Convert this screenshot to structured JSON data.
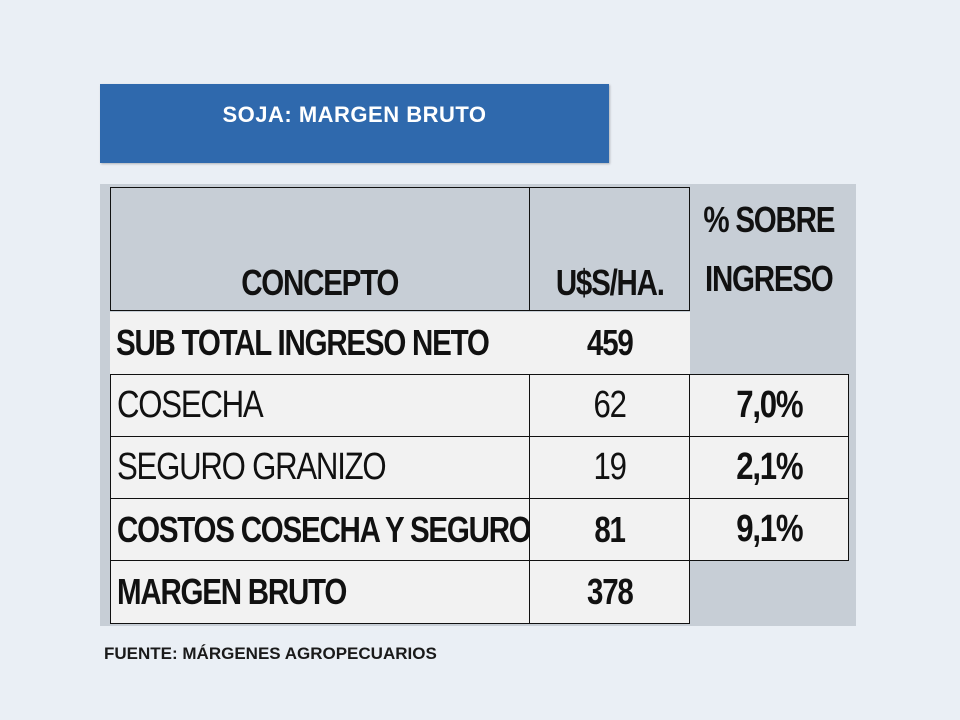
{
  "title": "SOJA: MARGEN BRUTO",
  "table": {
    "headers": {
      "concept": "CONCEPTO",
      "usd": "U$S/HA.",
      "pct_line1": "% SOBRE",
      "pct_line2": "INGRESO"
    },
    "rows": [
      {
        "concepto": "SUB TOTAL INGRESO NETO",
        "usd": "459",
        "pct": ""
      },
      {
        "concepto": "COSECHA",
        "usd": "62",
        "pct": "7,0%"
      },
      {
        "concepto": "SEGURO GRANIZO",
        "usd": "19",
        "pct": "2,1%"
      },
      {
        "concepto": "COSTOS COSECHA Y SEGURO",
        "usd": "81",
        "pct": "9,1%"
      },
      {
        "concepto": "MARGEN BRUTO",
        "usd": "378",
        "pct": ""
      }
    ]
  },
  "source": "FUENTE: MÁRGENES AGROPECUARIOS",
  "colors": {
    "background": "#eaeff5",
    "title_box": "#2f69ad",
    "table_grey": "#c7ced6",
    "row_light": "#f2f2f2"
  }
}
